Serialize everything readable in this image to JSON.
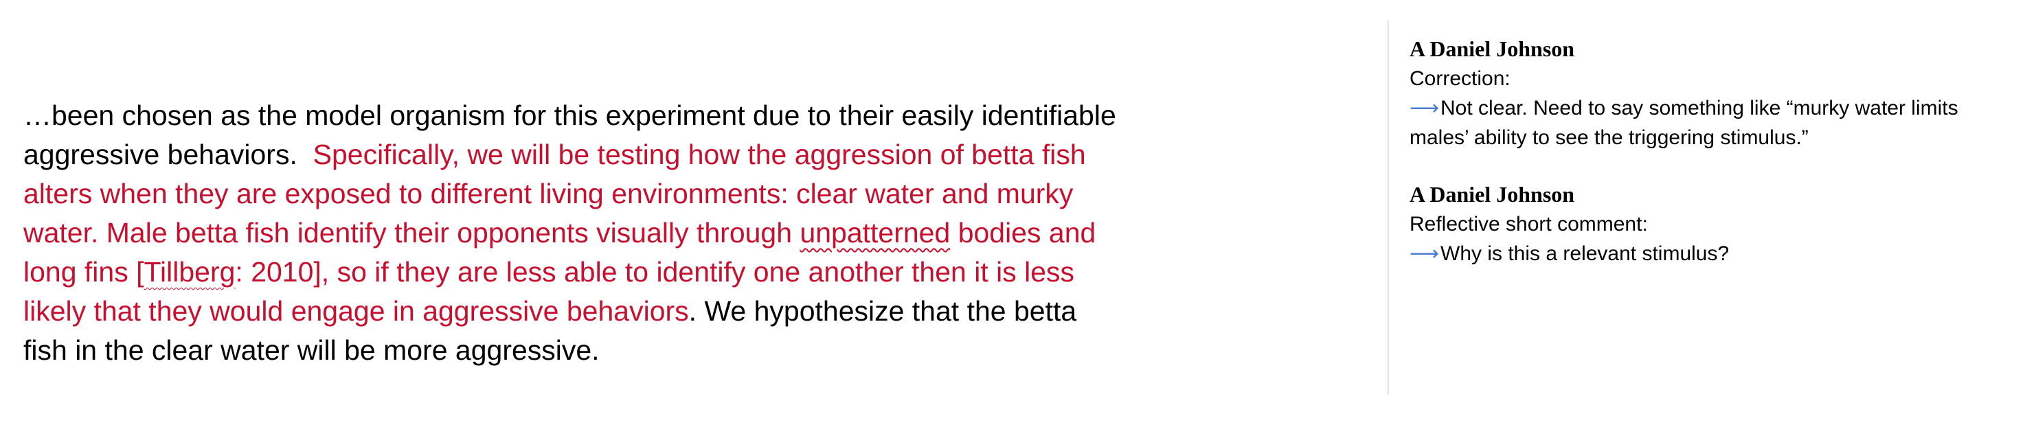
{
  "document": {
    "lines": [
      {
        "a": "…been chosen as the model organism for this experiment due to their easily identifiable"
      },
      {
        "a": "aggressive behaviors.  ",
        "b": "Specifically, we will be testing how the aggression of betta fish"
      },
      {
        "b": "alters when they are exposed to different living environments: clear water and murky"
      },
      {
        "b1": "water. Male betta fish identify their opponents visually through ",
        "b2": "unpatterned",
        "b3": " bodies and"
      },
      {
        "b1": "long fins [",
        "b2": "Tillberg",
        "b3": ": 2010], so if they are less able to identify one another then it is less"
      },
      {
        "b": "likely that they would engage in aggressive behaviors",
        "a": ". We hypothesize that the betta"
      },
      {
        "a": "fish in the clear water will be more aggressive."
      }
    ]
  },
  "comments": [
    {
      "author": "A Daniel Johnson",
      "type": "Correction:",
      "arrow": "⟶",
      "body_line1": "Not clear. Need to say something like “murky water limits",
      "body_line2": "males’ ability to see the triggering stimulus.”"
    },
    {
      "author": "A Daniel Johnson",
      "type": "Reflective short comment:",
      "arrow": "⟶",
      "body_line1": "Why is this a relevant stimulus?"
    }
  ],
  "colors": {
    "tracked_change_red": "#c8102e",
    "arrow_blue": "#4a7bd6"
  }
}
